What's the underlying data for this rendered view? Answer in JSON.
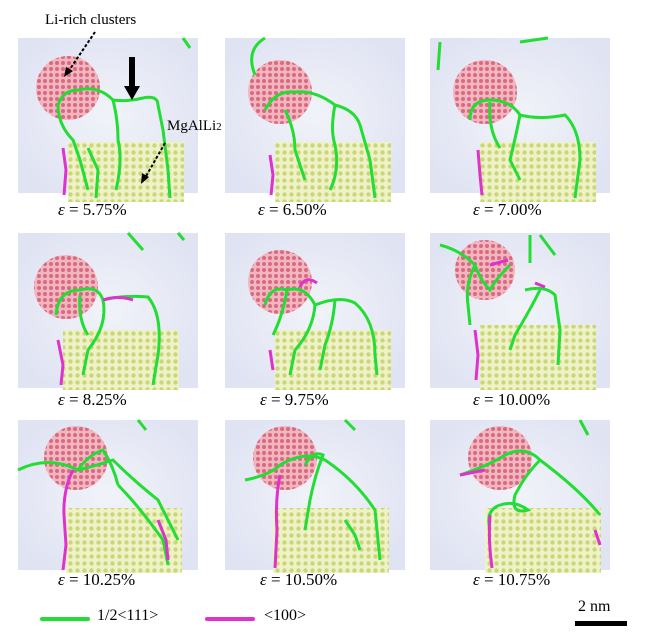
{
  "annotations": {
    "clusters_label": "Li-rich clusters",
    "precipitate_label": "MgAlLi",
    "precipitate_subscript": "2"
  },
  "strain_symbol": "ε",
  "panels": [
    {
      "strain": "= 5.75%"
    },
    {
      "strain": "= 6.50%"
    },
    {
      "strain": "= 7.00%"
    },
    {
      "strain": "= 8.25%"
    },
    {
      "strain": "= 9.75%"
    },
    {
      "strain": "= 10.00%"
    },
    {
      "strain": "= 10.25%"
    },
    {
      "strain": "= 10.50%"
    },
    {
      "strain": "= 10.75%"
    }
  ],
  "legend": {
    "items": [
      {
        "label": "1/2<111>",
        "color": "#22dd33"
      },
      {
        "label": "<100>",
        "color": "#dd33cc"
      }
    ],
    "scale_bar": "2 nm"
  },
  "colors": {
    "cluster": "#e58a9a",
    "precipitate": "#dfe8a0",
    "matrix": "#e6e8f4",
    "dislocation_111": "#22dd33",
    "dislocation_100": "#dd33cc"
  }
}
